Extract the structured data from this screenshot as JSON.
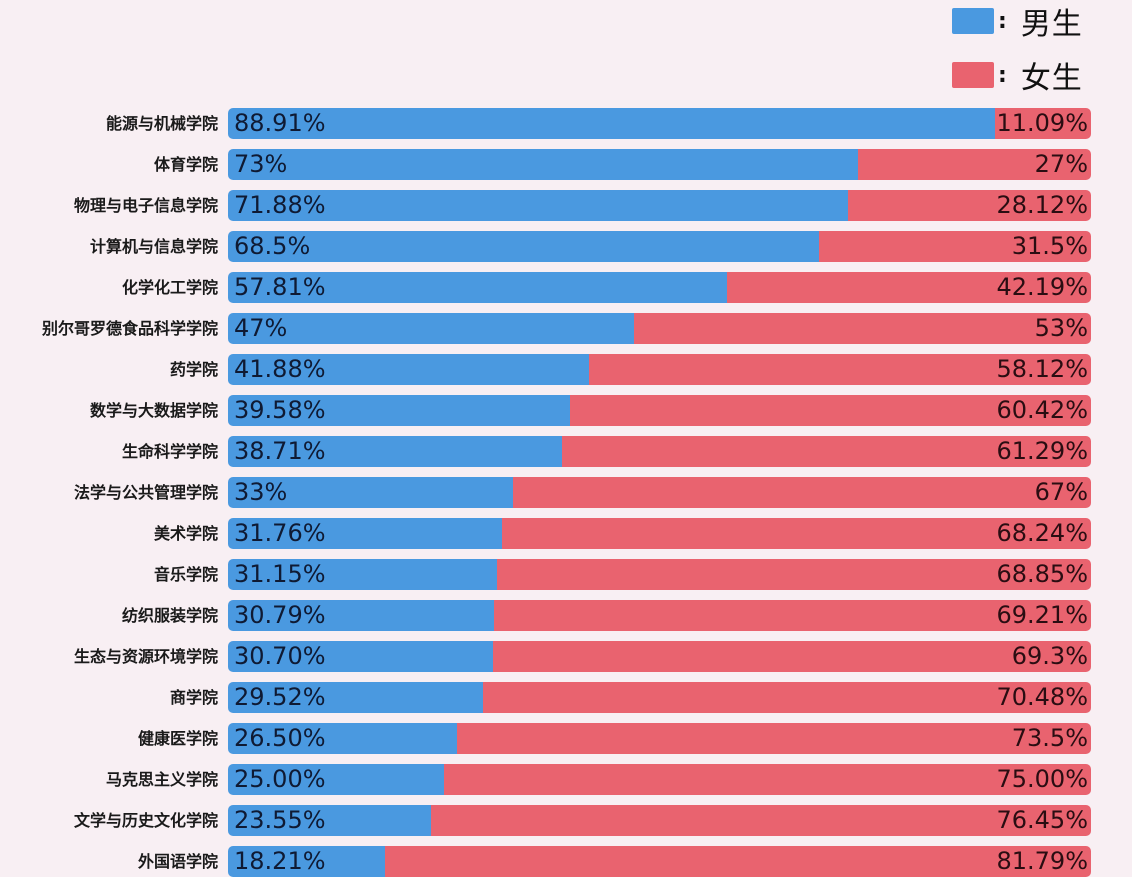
{
  "chart_data": {
    "type": "bar",
    "orientation": "horizontal",
    "stacked": true,
    "normalized": true,
    "title": "",
    "xlabel": "",
    "ylabel": "",
    "xlim": [
      0,
      100
    ],
    "grid": false,
    "legend_position": "top-right",
    "legend": [
      {
        "name": "男生",
        "color": "#4a99e0"
      },
      {
        "name": "女生",
        "color": "#e9636f"
      }
    ],
    "categories": [
      "能源与机械学院",
      "体育学院",
      "物理与电子信息学院",
      "计算机与信息学院",
      "化学化工学院",
      "别尔哥罗德食品科学学院",
      "药学院",
      "数学与大数据学院",
      "生命科学学院",
      "法学与公共管理学院",
      "美术学院",
      "音乐学院",
      "纺织服装学院",
      "生态与资源环境学院",
      "商学院",
      "健康医学院",
      "马克思主义学院",
      "文学与历史文化学院",
      "外国语学院"
    ],
    "series": [
      {
        "name": "男生",
        "values": [
          88.91,
          73,
          71.88,
          68.5,
          57.81,
          47,
          41.88,
          39.58,
          38.71,
          33,
          31.76,
          31.15,
          30.79,
          30.7,
          29.52,
          26.5,
          25.0,
          23.55,
          18.21
        ],
        "labels": [
          "88.91%",
          "73%",
          "71.88%",
          "68.5%",
          "57.81%",
          "47%",
          "41.88%",
          "39.58%",
          "38.71%",
          "33%",
          "31.76%",
          "31.15%",
          "30.79%",
          "30.70%",
          "29.52%",
          "26.50%",
          "25.00%",
          "23.55%",
          "18.21%"
        ]
      },
      {
        "name": "女生",
        "values": [
          11.09,
          27,
          28.12,
          31.5,
          42.19,
          53,
          58.12,
          60.42,
          61.29,
          67,
          68.24,
          68.85,
          69.21,
          69.3,
          70.48,
          73.5,
          75.0,
          76.45,
          81.79
        ],
        "labels": [
          "11.09%",
          "27%",
          "28.12%",
          "31.5%",
          "42.19%",
          "53%",
          "58.12%",
          "60.42%",
          "61.29%",
          "67%",
          "68.24%",
          "68.85%",
          "69.21%",
          "69.3%",
          "70.48%",
          "73.5%",
          "75.00%",
          "76.45%",
          "81.79%"
        ]
      }
    ]
  },
  "legend": {
    "male_label": "男生",
    "female_label": "女生",
    "separator": ":"
  },
  "colors": {
    "male": "#4a99e0",
    "female": "#e9636f",
    "background": "#f8eff3"
  }
}
